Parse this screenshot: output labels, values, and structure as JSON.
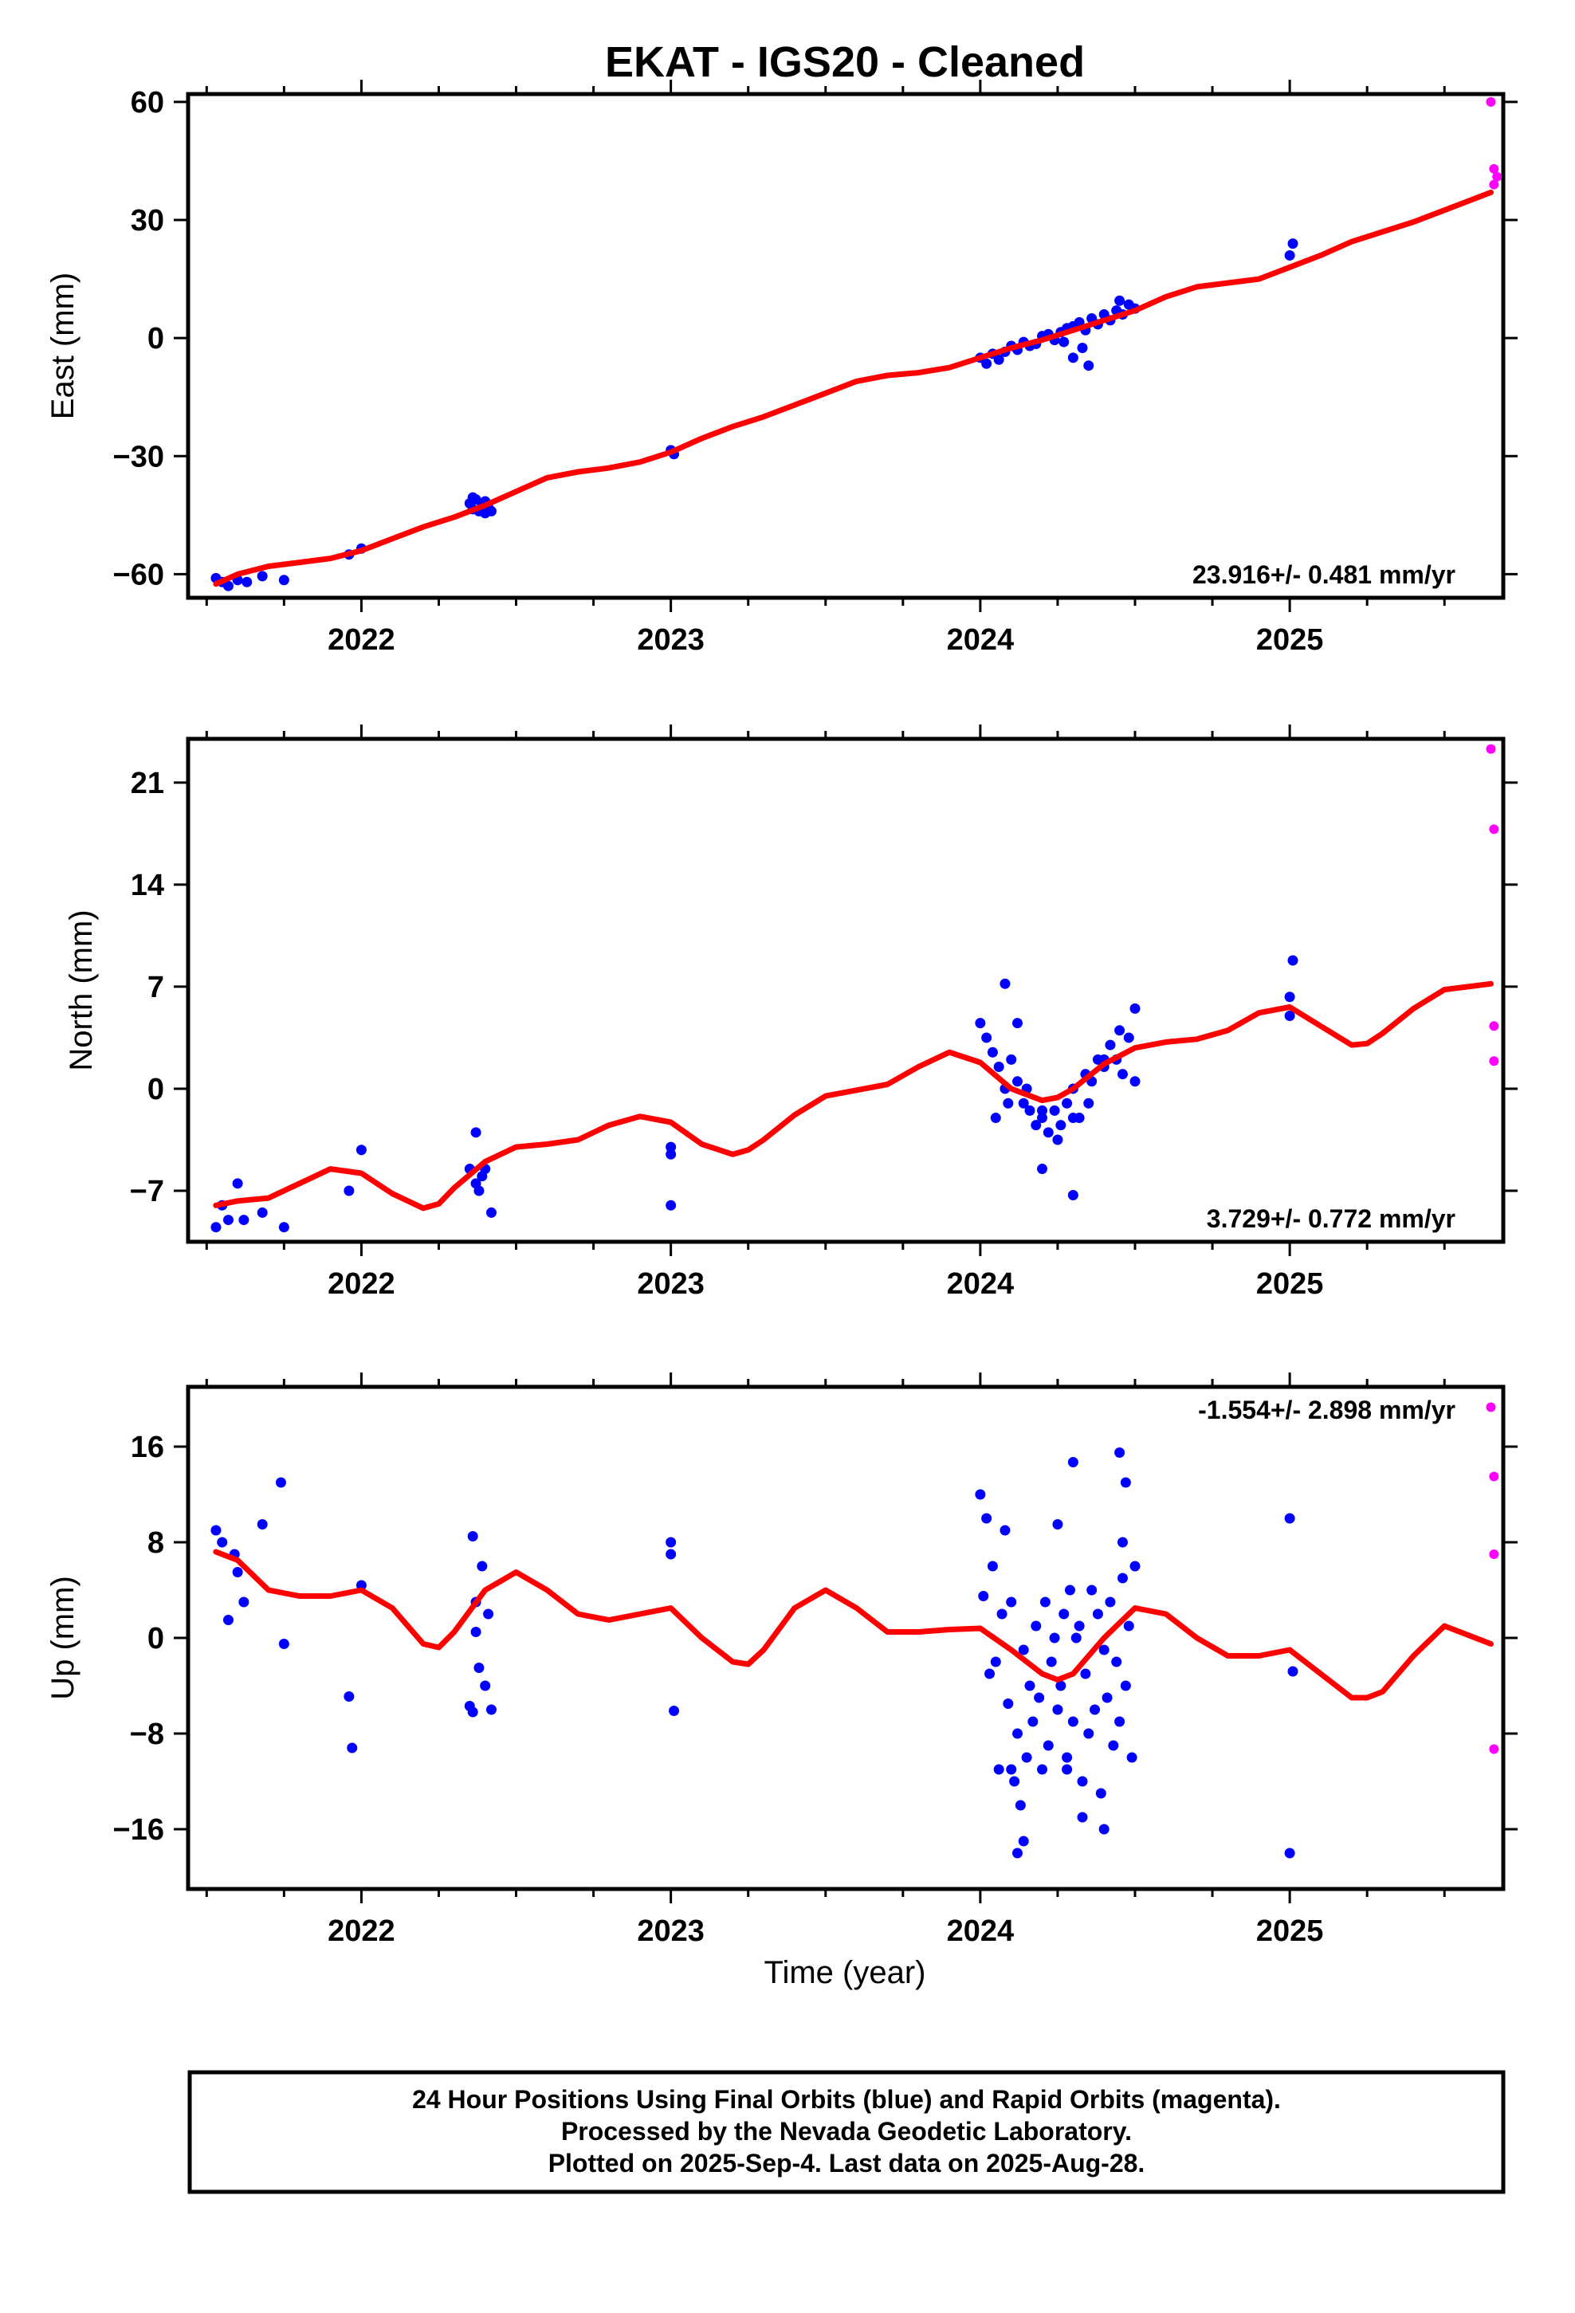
{
  "chart_data": {
    "type": "scatter",
    "title": "EKAT  - IGS20 - Cleaned",
    "xlabel": "Time (year)",
    "x_ticks": [
      "2022",
      "2023",
      "2024",
      "2025"
    ],
    "footer": [
      "24 Hour Positions Using Final Orbits (blue) and Rapid Orbits (magenta).",
      "Processed by the Nevada Geodetic Laboratory.",
      "Plotted on 2025-Sep-4. Last data on 2025-Aug-28."
    ],
    "colors": {
      "final": "#0000ff",
      "rapid": "#ff00ff",
      "model": "#ff0000",
      "axis": "#000000"
    },
    "panels": [
      {
        "id": "east",
        "ylabel": "East (mm)",
        "ylim": [
          -66,
          62
        ],
        "y_ticks": [
          "60",
          "30",
          "0",
          "−30",
          "−60"
        ],
        "y_tick_values": [
          60,
          30,
          0,
          -30,
          -60
        ],
        "rate_label": "23.916+/- 0.481 mm/yr",
        "model": {
          "x": [
            2021.53,
            2021.6,
            2021.7,
            2021.8,
            2021.9,
            2022.0,
            2022.1,
            2022.2,
            2022.3,
            2022.4,
            2022.5,
            2022.6,
            2022.7,
            2022.8,
            2022.9,
            2023.0,
            2023.1,
            2023.2,
            2023.3,
            2023.4,
            2023.5,
            2023.6,
            2023.7,
            2023.8,
            2023.9,
            2024.0,
            2024.1,
            2024.2,
            2024.3,
            2024.4,
            2024.5,
            2024.6,
            2024.7,
            2024.8,
            2024.9,
            2025.0,
            2025.1,
            2025.2,
            2025.3,
            2025.4,
            2025.5,
            2025.65
          ],
          "y": [
            -62.5,
            -60,
            -58,
            -57,
            -56,
            -54,
            -51,
            -48,
            -45.5,
            -42.5,
            -39,
            -35.5,
            -34,
            -33,
            -31.5,
            -29,
            -25.5,
            -22.5,
            -20,
            -17,
            -14,
            -11,
            -9.5,
            -8.8,
            -7.5,
            -5,
            -2.5,
            -0.5,
            2,
            4.5,
            7,
            10.5,
            13,
            14,
            15,
            18,
            21,
            24.5,
            27,
            29.5,
            32.5,
            37
          ]
        },
        "final": {
          "x": [
            2021.53,
            2021.55,
            2021.57,
            2021.6,
            2021.63,
            2021.68,
            2021.75,
            2021.96,
            2022.0,
            2022.35,
            2022.36,
            2022.37,
            2022.38,
            2022.39,
            2022.4,
            2022.41,
            2022.42,
            2022.36,
            2022.4,
            2023.0,
            2023.01,
            2024.0,
            2024.02,
            2024.04,
            2024.06,
            2024.08,
            2024.1,
            2024.12,
            2024.14,
            2024.16,
            2024.18,
            2024.2,
            2024.22,
            2024.24,
            2024.26,
            2024.28,
            2024.3,
            2024.32,
            2024.34,
            2024.36,
            2024.38,
            2024.4,
            2024.42,
            2024.44,
            2024.46,
            2024.48,
            2024.5,
            2024.3,
            2024.35,
            2024.33,
            2024.27,
            2024.45,
            2025.0,
            2025.01
          ],
          "y": [
            -61,
            -62,
            -63,
            -61.5,
            -62,
            -60.5,
            -61.5,
            -55,
            -53.5,
            -42,
            -43.5,
            -41,
            -44,
            -42.5,
            -41.5,
            -43,
            -44,
            -40.5,
            -44.5,
            -28.5,
            -29.5,
            -5,
            -6.5,
            -4,
            -5.5,
            -3.5,
            -2,
            -3,
            -1,
            -2,
            -1.5,
            0.5,
            1,
            -0.5,
            1.5,
            2.5,
            3,
            4,
            2,
            5,
            3.5,
            6,
            4.5,
            7,
            6,
            8.5,
            7.5,
            -5,
            -7,
            -2.5,
            -1,
            9.5,
            21,
            24
          ]
        },
        "rapid": {
          "x": [
            2025.65,
            2025.66,
            2025.67,
            2025.66
          ],
          "y": [
            60,
            43,
            41,
            39
          ]
        }
      },
      {
        "id": "north",
        "ylabel": "North (mm)",
        "ylim": [
          -10.5,
          24
        ],
        "y_ticks": [
          "21",
          "14",
          "7",
          "0",
          "−7"
        ],
        "y_tick_values": [
          21,
          14,
          7,
          0,
          -7
        ],
        "rate_label": "3.729+/- 0.772 mm/yr",
        "model": {
          "x": [
            2021.53,
            2021.6,
            2021.7,
            2021.8,
            2021.9,
            2022.0,
            2022.1,
            2022.2,
            2022.25,
            2022.3,
            2022.4,
            2022.5,
            2022.6,
            2022.7,
            2022.8,
            2022.9,
            2023.0,
            2023.1,
            2023.2,
            2023.25,
            2023.3,
            2023.4,
            2023.5,
            2023.6,
            2023.7,
            2023.8,
            2023.9,
            2024.0,
            2024.1,
            2024.2,
            2024.25,
            2024.3,
            2024.4,
            2024.5,
            2024.6,
            2024.7,
            2024.8,
            2024.9,
            2025.0,
            2025.1,
            2025.2,
            2025.25,
            2025.3,
            2025.4,
            2025.5,
            2025.65
          ],
          "y": [
            -8,
            -7.7,
            -7.5,
            -6.5,
            -5.5,
            -5.8,
            -7.2,
            -8.2,
            -7.9,
            -6.8,
            -5,
            -4,
            -3.8,
            -3.5,
            -2.5,
            -1.9,
            -2.3,
            -3.8,
            -4.5,
            -4.2,
            -3.5,
            -1.8,
            -0.5,
            -0.1,
            0.3,
            1.5,
            2.5,
            1.8,
            0,
            -0.8,
            -0.6,
            0,
            1.7,
            2.8,
            3.2,
            3.4,
            4,
            5.2,
            5.6,
            4.3,
            3,
            3.1,
            3.8,
            5.5,
            6.8,
            7.2
          ]
        },
        "final": {
          "x": [
            2021.53,
            2021.55,
            2021.57,
            2021.6,
            2021.62,
            2021.68,
            2021.75,
            2021.96,
            2022.0,
            2022.35,
            2022.37,
            2022.38,
            2022.39,
            2022.4,
            2022.42,
            2022.37,
            2023.0,
            2023.0,
            2023.0,
            2024.0,
            2024.02,
            2024.04,
            2024.06,
            2024.08,
            2024.1,
            2024.12,
            2024.14,
            2024.16,
            2024.18,
            2024.2,
            2024.22,
            2024.24,
            2024.26,
            2024.28,
            2024.3,
            2024.32,
            2024.34,
            2024.36,
            2024.38,
            2024.4,
            2024.42,
            2024.44,
            2024.46,
            2024.48,
            2024.5,
            2024.05,
            2024.09,
            2024.15,
            2024.2,
            2024.25,
            2024.3,
            2024.35,
            2024.4,
            2024.45,
            2024.5,
            2024.2,
            2024.3,
            2024.08,
            2024.12,
            2025.0,
            2025.01,
            2025.0
          ],
          "y": [
            -9.5,
            -8,
            -9,
            -6.5,
            -9,
            -8.5,
            -9.5,
            -7,
            -4.2,
            -5.5,
            -6.5,
            -7,
            -6,
            -5.5,
            -8.5,
            -3,
            -4,
            -4.5,
            -8,
            4.5,
            3.5,
            2.5,
            1.5,
            0,
            2,
            0.5,
            -1,
            -1.5,
            -2.5,
            -2,
            -3,
            -1.5,
            -2.5,
            -1,
            0,
            -2,
            1,
            0.5,
            2,
            1.5,
            3,
            2,
            1,
            3.5,
            0.5,
            -2,
            -1,
            0,
            -1.5,
            -3.5,
            -2,
            -1,
            2,
            4,
            5.5,
            -5.5,
            -7.3,
            7.2,
            4.5,
            6.3,
            8.8,
            5
          ]
        },
        "rapid": {
          "x": [
            2025.65,
            2025.66,
            2025.66,
            2025.66
          ],
          "y": [
            23.3,
            17.8,
            4.3,
            1.9
          ]
        }
      },
      {
        "id": "up",
        "ylabel": "Up (mm)",
        "ylim": [
          -21,
          21
        ],
        "y_ticks": [
          "16",
          "8",
          "0",
          "−8",
          "−16"
        ],
        "y_tick_values": [
          16,
          8,
          0,
          -8,
          -16
        ],
        "rate_label": "-1.554+/- 2.898 mm/yr",
        "model": {
          "x": [
            2021.53,
            2021.6,
            2021.7,
            2021.8,
            2021.9,
            2022.0,
            2022.1,
            2022.2,
            2022.25,
            2022.3,
            2022.4,
            2022.5,
            2022.6,
            2022.7,
            2022.8,
            2022.9,
            2023.0,
            2023.1,
            2023.2,
            2023.25,
            2023.3,
            2023.4,
            2023.5,
            2023.6,
            2023.7,
            2023.8,
            2023.9,
            2024.0,
            2024.1,
            2024.2,
            2024.25,
            2024.3,
            2024.4,
            2024.5,
            2024.6,
            2024.7,
            2024.8,
            2024.9,
            2025.0,
            2025.1,
            2025.2,
            2025.25,
            2025.3,
            2025.4,
            2025.5,
            2025.65
          ],
          "y": [
            7.2,
            6.5,
            4,
            3.5,
            3.5,
            4,
            2.5,
            -0.5,
            -0.8,
            0.5,
            4,
            5.5,
            4,
            2,
            1.5,
            2,
            2.5,
            0,
            -2,
            -2.2,
            -1,
            2.5,
            4,
            2.5,
            0.5,
            0.5,
            0.7,
            0.8,
            -1,
            -3,
            -3.5,
            -3,
            0,
            2.5,
            2,
            0,
            -1.5,
            -1.5,
            -1,
            -3,
            -5,
            -5,
            -4.5,
            -1.5,
            1,
            -0.5
          ]
        },
        "final": {
          "x": [
            2021.53,
            2021.55,
            2021.57,
            2021.59,
            2021.6,
            2021.62,
            2021.68,
            2021.74,
            2021.75,
            2021.96,
            2021.97,
            2022.0,
            2022.35,
            2022.36,
            2022.37,
            2022.38,
            2022.39,
            2022.4,
            2022.41,
            2022.42,
            2022.36,
            2022.37,
            2023.0,
            2023.0,
            2023.01,
            2024.0,
            2024.01,
            2024.02,
            2024.03,
            2024.04,
            2024.05,
            2024.06,
            2024.07,
            2024.08,
            2024.09,
            2024.1,
            2024.11,
            2024.12,
            2024.13,
            2024.14,
            2024.15,
            2024.16,
            2024.17,
            2024.18,
            2024.19,
            2024.2,
            2024.21,
            2024.22,
            2024.23,
            2024.24,
            2024.25,
            2024.26,
            2024.27,
            2024.28,
            2024.29,
            2024.3,
            2024.31,
            2024.32,
            2024.33,
            2024.34,
            2024.35,
            2024.36,
            2024.37,
            2024.38,
            2024.39,
            2024.4,
            2024.41,
            2024.42,
            2024.43,
            2024.44,
            2024.45,
            2024.46,
            2024.47,
            2024.48,
            2024.49,
            2024.5,
            2024.12,
            2024.14,
            2024.28,
            2024.3,
            2024.33,
            2024.45,
            2024.47,
            2024.46,
            2024.1,
            2024.25,
            2024.4,
            2025.0,
            2025.01,
            2025.0
          ],
          "y": [
            9,
            8,
            1.5,
            7,
            5.5,
            3,
            9.5,
            13,
            -0.5,
            -4.9,
            -9.2,
            4.4,
            -5.7,
            8.5,
            3,
            -2.5,
            6,
            -4,
            2,
            -6,
            -6.2,
            0.5,
            8,
            7,
            -6.1,
            12,
            3.5,
            10,
            -3,
            6,
            -2,
            -11,
            2,
            9,
            -5.5,
            3,
            -12,
            -8,
            -14,
            -1,
            -10,
            -4,
            -7,
            1,
            -5,
            -11,
            3,
            -9,
            -2,
            0,
            -6,
            -4,
            2,
            -10,
            4,
            -7,
            0,
            1,
            -12,
            -3,
            -8,
            4,
            -6,
            2,
            -13,
            -1,
            -5,
            3,
            -9,
            -2,
            -7,
            5,
            -4,
            1,
            -10,
            6,
            -18,
            -17,
            -11,
            14.7,
            -15,
            15.5,
            13,
            8,
            -11,
            9.5,
            -16,
            10,
            -2.8,
            -18
          ]
        },
        "rapid": {
          "x": [
            2025.65,
            2025.66,
            2025.66,
            2025.66
          ],
          "y": [
            19.3,
            13.5,
            7,
            -9.3
          ]
        }
      }
    ]
  }
}
